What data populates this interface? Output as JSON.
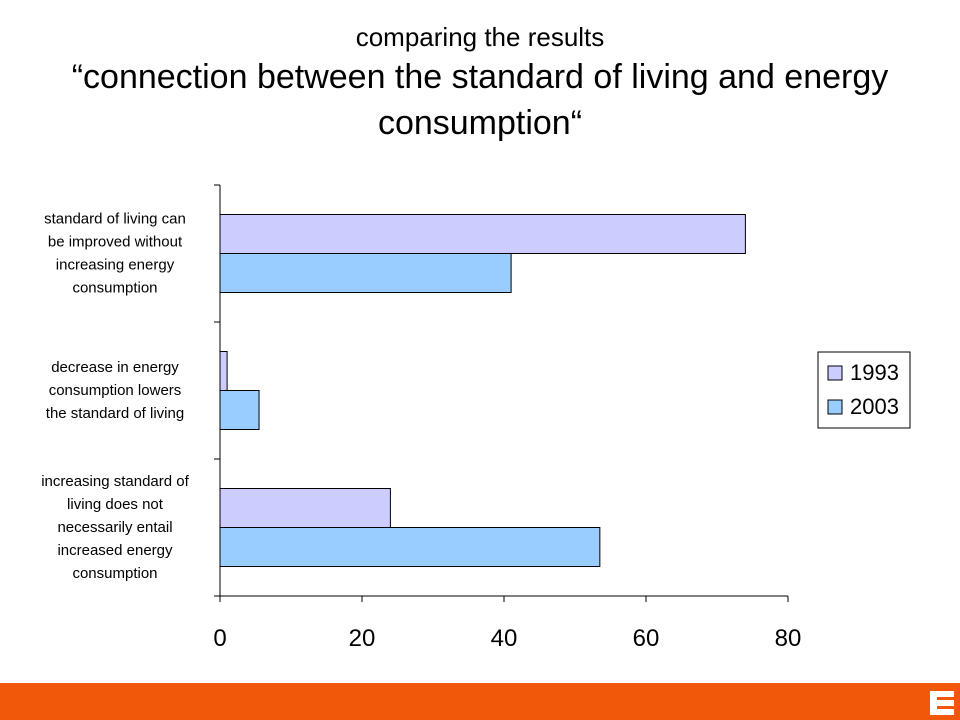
{
  "header": {
    "subtitle": "comparing the results",
    "title": "“connection between the standard of living and energy consumption“"
  },
  "chart_data": {
    "type": "bar",
    "orientation": "horizontal",
    "categories": [
      [
        "standard of living can",
        "be improved without",
        "increasing energy",
        "consumption"
      ],
      [
        "decrease in energy",
        "consumption lowers",
        "the standard of living"
      ],
      [
        "increasing standard of",
        "living does not",
        "necessarily entail",
        "increased energy",
        "consumption"
      ]
    ],
    "series": [
      {
        "name": "1993",
        "values": [
          74,
          1,
          24
        ],
        "color": "#ccccff"
      },
      {
        "name": "2003",
        "values": [
          41,
          5.5,
          53.5
        ],
        "color": "#99ccff"
      }
    ],
    "xlim": [
      0,
      80
    ],
    "xticks": [
      0,
      20,
      40,
      60,
      80
    ],
    "grid": false,
    "legend_position": "right"
  },
  "colors": {
    "brand_bar": "#f2580a",
    "logo": "#ffffff"
  },
  "icons": {
    "logo": "brand-logo-icon"
  }
}
